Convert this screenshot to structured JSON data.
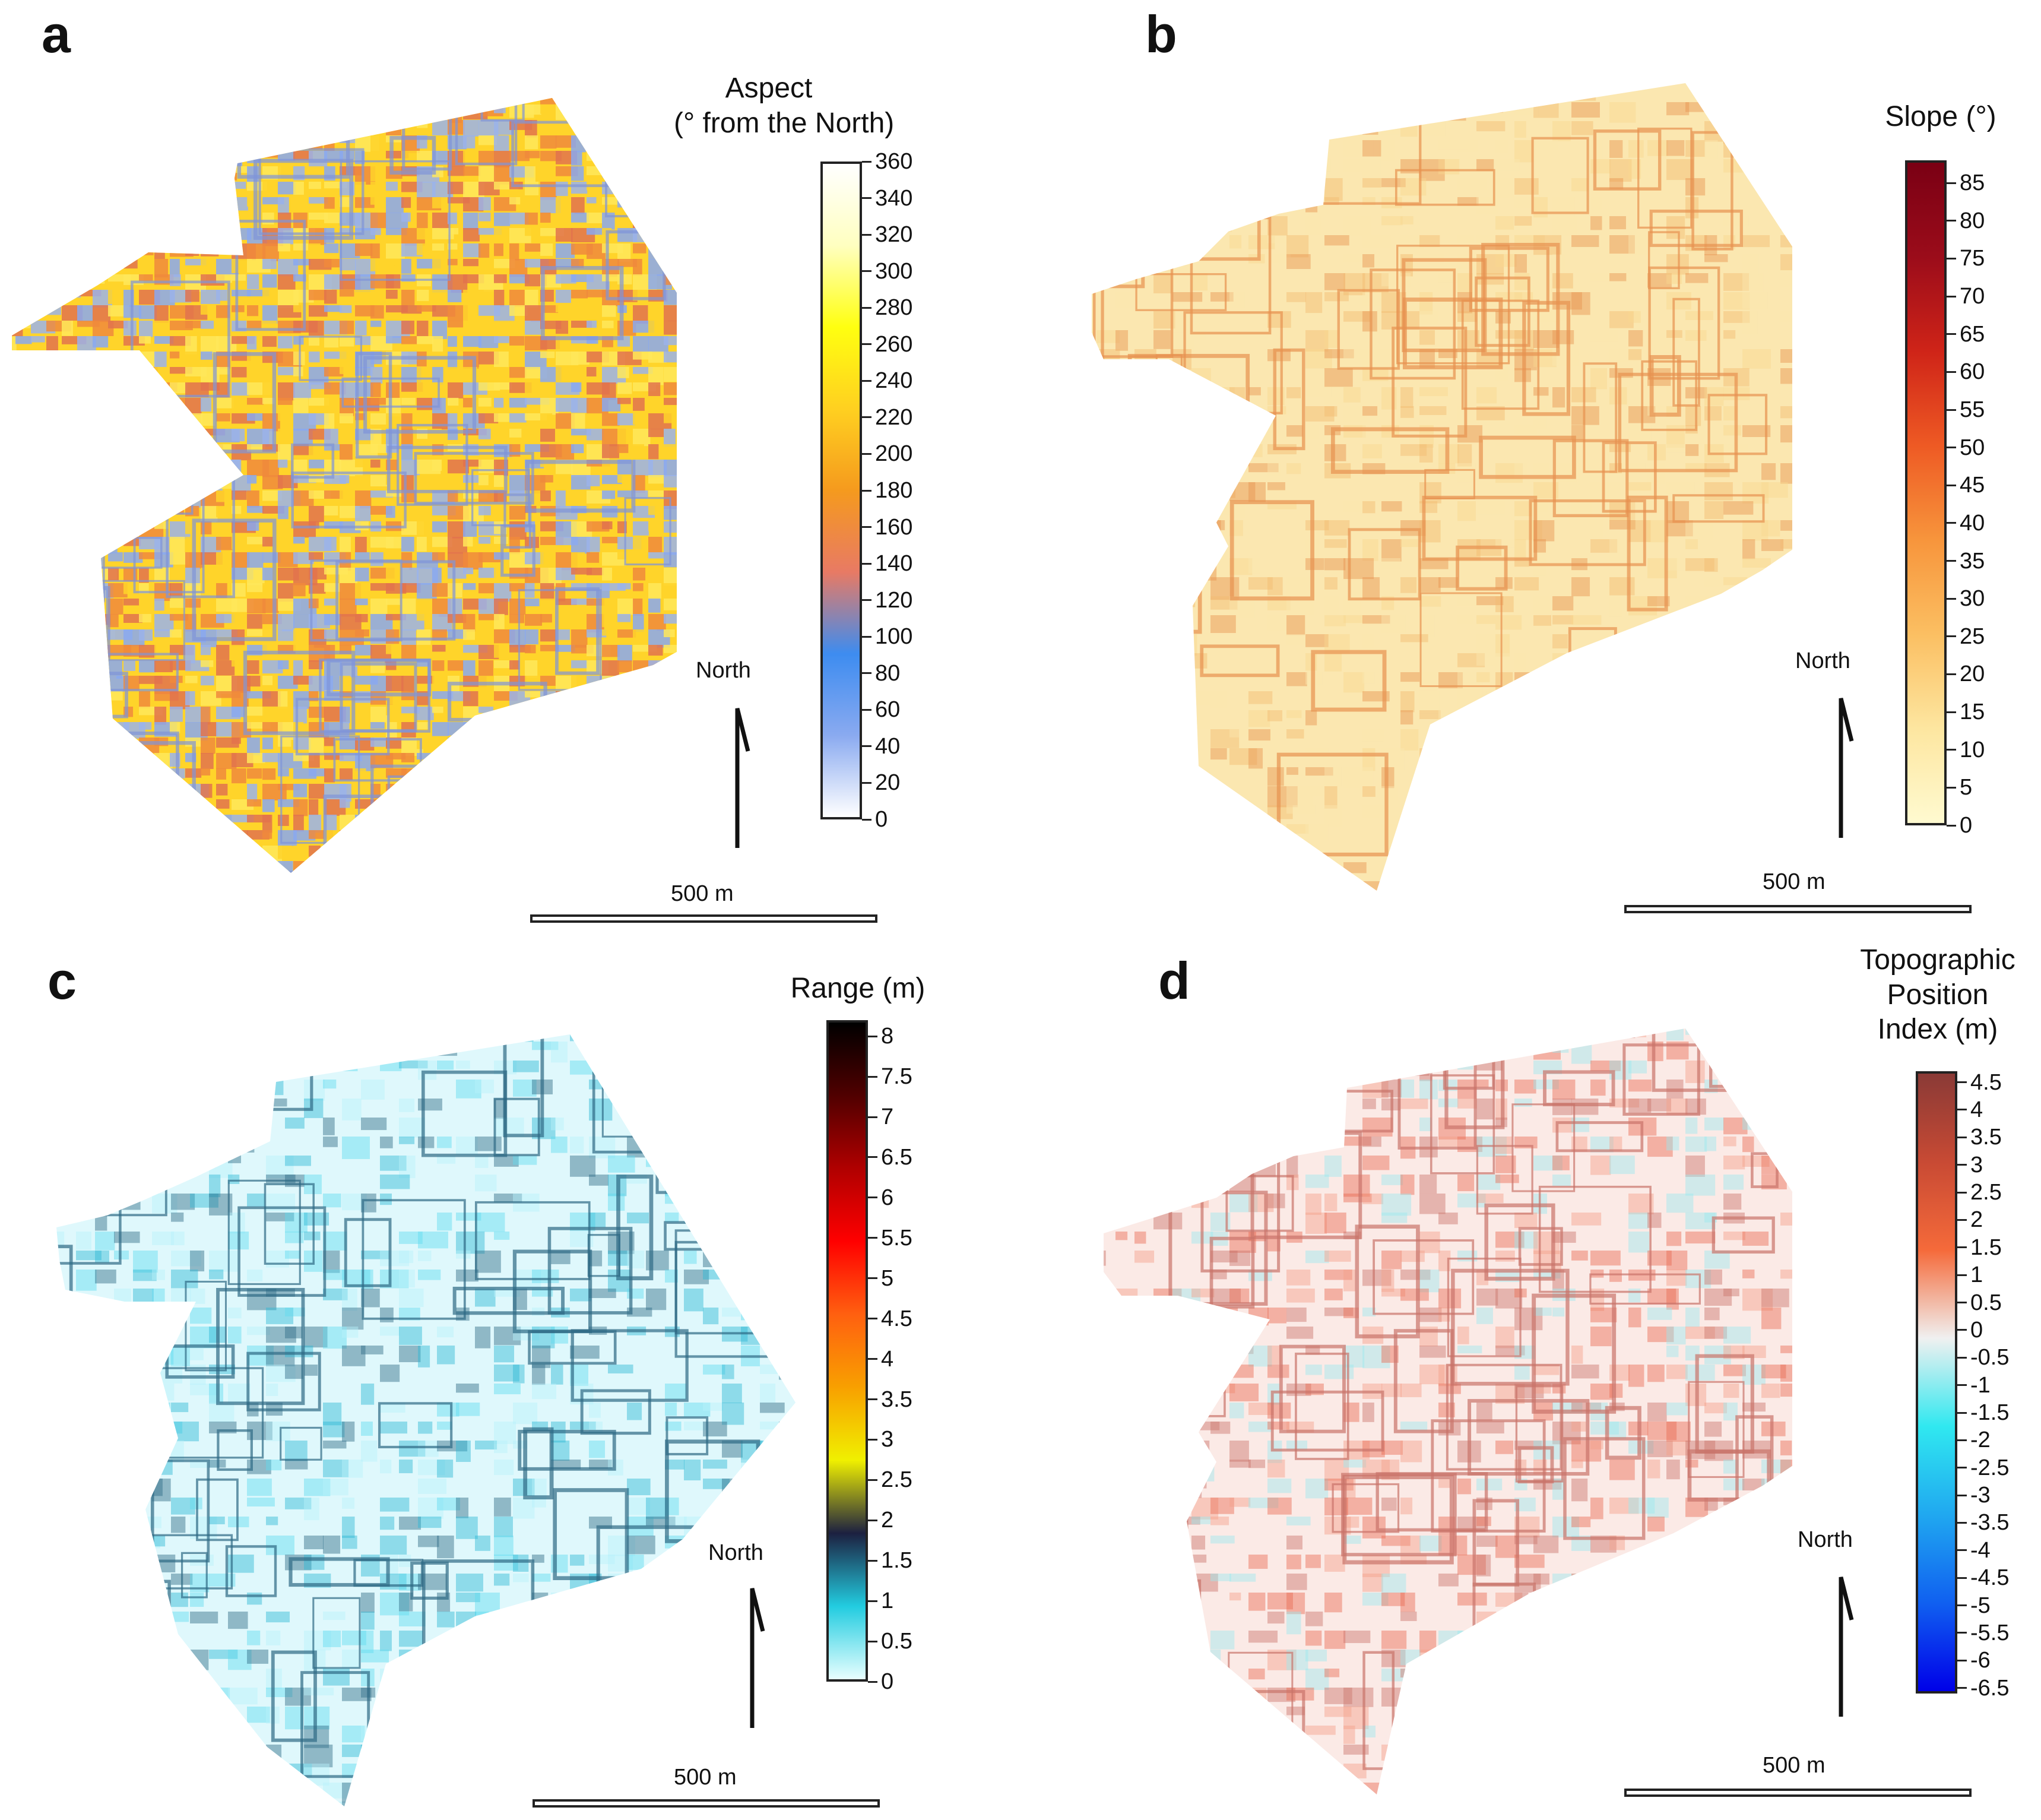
{
  "figure": {
    "panels": [
      {
        "letter": "a",
        "product": "Aspect",
        "legend_title_lines": [
          "Aspect",
          "(° from the North)"
        ],
        "ticks": [
          "0",
          "20",
          "40",
          "60",
          "80",
          "100",
          "120",
          "140",
          "160",
          "180",
          "200",
          "220",
          "240",
          "260",
          "280",
          "300",
          "320",
          "340",
          "360"
        ],
        "range": [
          0,
          360
        ],
        "colormap": [
          "#ffffff",
          "#8aaaf0",
          "#3d8cf0",
          "#e87a64",
          "#f59a1e",
          "#ffd020",
          "#ffff10",
          "#ffffc0",
          "#ffffff"
        ],
        "map_palette": [
          "#f08a3c",
          "#ffd42a",
          "#8aa8f0",
          "#e2734e",
          "#ffe85a",
          "#9bb3ea"
        ],
        "north_label": "North",
        "scale_label": "500 m"
      },
      {
        "letter": "b",
        "product": "Slope",
        "legend_title_lines": [
          "Slope (°)"
        ],
        "ticks": [
          "0",
          "5",
          "10",
          "15",
          "20",
          "25",
          "30",
          "35",
          "40",
          "45",
          "50",
          "55",
          "60",
          "65",
          "70",
          "75",
          "80",
          "85"
        ],
        "range": [
          0,
          88
        ],
        "colormap": [
          "#fffad0",
          "#fde6a0",
          "#fbbf62",
          "#f7953c",
          "#ee5a24",
          "#cf2418",
          "#9b0c1a",
          "#7a0014"
        ],
        "map_palette": [
          "#fbe7b0",
          "#f8d790",
          "#f1ba72",
          "#e79250"
        ],
        "north_label": "North",
        "scale_label": "500 m"
      },
      {
        "letter": "c",
        "product": "Range",
        "legend_title_lines": [
          "Range (m)"
        ],
        "ticks": [
          "0",
          "0.5",
          "1",
          "1.5",
          "2",
          "2.5",
          "3",
          "3.5",
          "4",
          "4.5",
          "5",
          "5.5",
          "6",
          "6.5",
          "7",
          "7.5",
          "8"
        ],
        "range": [
          0,
          8.2
        ],
        "colormap": [
          "#e8ffff",
          "#22cce0",
          "#1c2040",
          "#f0f000",
          "#f8a000",
          "#ff6010",
          "#ff0000",
          "#b00000",
          "#500000",
          "#000000"
        ],
        "map_palette": [
          "#b8f2fa",
          "#5fdbef",
          "#2cb8d4",
          "#2e6a84"
        ],
        "north_label": "North",
        "scale_label": "500 m"
      },
      {
        "letter": "d",
        "product": "Topographic Position Index",
        "legend_title_lines": [
          "Topographic",
          "Position",
          "Index (m)"
        ],
        "ticks": [
          "-6.5",
          "-6",
          "-5.5",
          "-5",
          "-4.5",
          "-4",
          "-3.5",
          "-3",
          "-2.5",
          "-2",
          "-1.5",
          "-1",
          "-0.5",
          "0",
          "0.5",
          "1",
          "1.5",
          "2",
          "2.5",
          "3",
          "3.5",
          "4",
          "4.5"
        ],
        "range": [
          -6.6,
          4.7
        ],
        "colormap": [
          "#0000e8",
          "#1060f0",
          "#20a8f0",
          "#30e8f0",
          "#f0f0f0",
          "#f56a3a",
          "#c84a34",
          "#8a3a36"
        ],
        "map_palette": [
          "#f4a08a",
          "#e86a52",
          "#9be8ef",
          "#c9746a"
        ],
        "north_label": "North",
        "scale_label": "500 m"
      }
    ]
  }
}
